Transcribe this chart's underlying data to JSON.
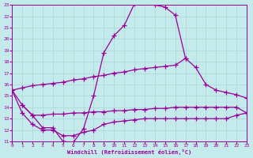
{
  "xlabel": "Windchill (Refroidissement éolien,°C)",
  "xlim": [
    0,
    23
  ],
  "ylim": [
    11,
    23
  ],
  "xticks": [
    0,
    1,
    2,
    3,
    4,
    5,
    6,
    7,
    8,
    9,
    10,
    11,
    12,
    13,
    14,
    15,
    16,
    17,
    18,
    19,
    20,
    21,
    22,
    23
  ],
  "yticks": [
    11,
    12,
    13,
    14,
    15,
    16,
    17,
    18,
    19,
    20,
    21,
    22,
    23
  ],
  "background_color": "#c5eaec",
  "line_color": "#990099",
  "grid_color": "#a8d8d4",
  "curve1_x": [
    0,
    1,
    2,
    3,
    4,
    5,
    6,
    7,
    8,
    9,
    10,
    11,
    12,
    13,
    14,
    15,
    16,
    17
  ],
  "curve1_y": [
    15.5,
    14.2,
    13.3,
    12.2,
    12.2,
    11.0,
    10.9,
    12.1,
    15.0,
    18.8,
    20.3,
    21.2,
    23.1,
    23.2,
    23.0,
    22.8,
    22.1,
    18.3
  ],
  "curve2_x": [
    0,
    1,
    2,
    3,
    4,
    5,
    6,
    7,
    8,
    9,
    10,
    11,
    12,
    13,
    14,
    15,
    16,
    17,
    18,
    19,
    20,
    21,
    22,
    23
  ],
  "curve2_y": [
    15.5,
    15.7,
    15.9,
    16.0,
    16.1,
    16.2,
    16.4,
    16.5,
    16.7,
    16.8,
    17.0,
    17.1,
    17.3,
    17.4,
    17.5,
    17.6,
    17.7,
    18.3,
    17.5,
    16.0,
    15.5,
    15.3,
    15.1,
    14.8
  ],
  "curve3_x": [
    1,
    2,
    3,
    4,
    5,
    6,
    7,
    8,
    9,
    10,
    11,
    12,
    13,
    14,
    15,
    16,
    17,
    18,
    19,
    20,
    21,
    22,
    23
  ],
  "curve3_y": [
    14.2,
    13.3,
    13.3,
    13.4,
    13.4,
    13.5,
    13.5,
    13.6,
    13.6,
    13.7,
    13.7,
    13.8,
    13.8,
    13.9,
    13.9,
    14.0,
    14.0,
    14.0,
    14.0,
    14.0,
    14.0,
    14.0,
    13.5
  ],
  "curve4_x": [
    0,
    1,
    2,
    3,
    4,
    5,
    6,
    7,
    8,
    9,
    10,
    11,
    12,
    13,
    14,
    15,
    16,
    17,
    18,
    19,
    20,
    21,
    22,
    23
  ],
  "curve4_y": [
    15.5,
    13.5,
    12.5,
    12.0,
    12.0,
    11.5,
    11.5,
    11.8,
    12.0,
    12.5,
    12.7,
    12.8,
    12.9,
    13.0,
    13.0,
    13.0,
    13.0,
    13.0,
    13.0,
    13.0,
    13.0,
    13.0,
    13.3,
    13.5
  ],
  "linewidth": 0.9,
  "marker_size": 2.5
}
